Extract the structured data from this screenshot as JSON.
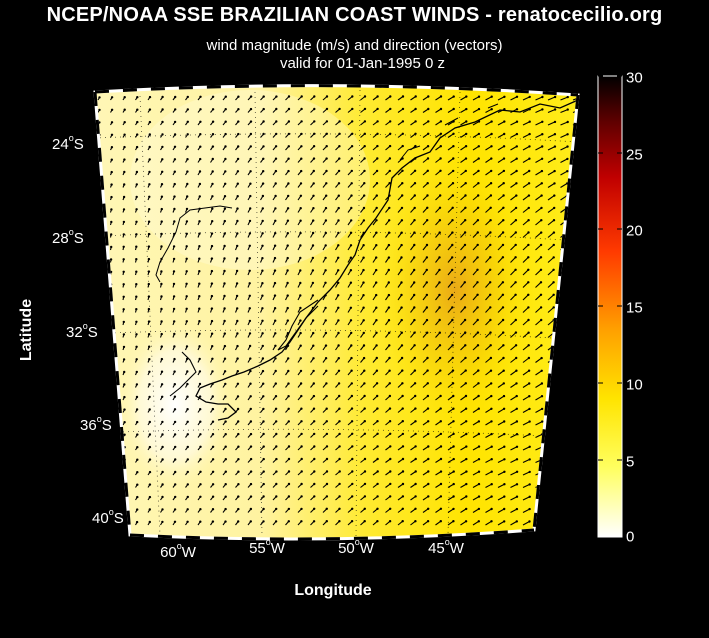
{
  "title": "NCEP/NOAA SSE BRAZILIAN COAST WINDS - renatocecilio.org",
  "subtitle_line1": "wind magnitude (m/s) and direction (vectors)",
  "subtitle_line2": "valid for 01-Jan-1995  0 z",
  "xlabel": "Longitude",
  "ylabel": "Latitude",
  "lat_labels": [
    {
      "deg": "24",
      "hem": "S"
    },
    {
      "deg": "28",
      "hem": "S"
    },
    {
      "deg": "32",
      "hem": "S"
    },
    {
      "deg": "36",
      "hem": "S"
    },
    {
      "deg": "40",
      "hem": "S"
    }
  ],
  "lon_labels": [
    {
      "deg": "60",
      "hem": "W"
    },
    {
      "deg": "55",
      "hem": "W"
    },
    {
      "deg": "50",
      "hem": "W"
    },
    {
      "deg": "45",
      "hem": "W"
    }
  ],
  "colorbar": {
    "min": 0,
    "max": 30,
    "ticks": [
      "30",
      "25",
      "20",
      "15",
      "10",
      "5",
      "0"
    ],
    "colormap": "hot (reversed)"
  },
  "map": {
    "region": "South Atlantic off southern Brazil, Uruguay and Argentina",
    "lat_range": [
      "22S",
      "41S"
    ],
    "lon_range": [
      "64W",
      "41W"
    ],
    "field_colors": {
      "calm": "#ffffff",
      "mid": "#ffff00",
      "max": "#e69a10"
    },
    "coastline_color": "#000000",
    "vector_color": "#000000",
    "frame_color": "#ffffff"
  }
}
